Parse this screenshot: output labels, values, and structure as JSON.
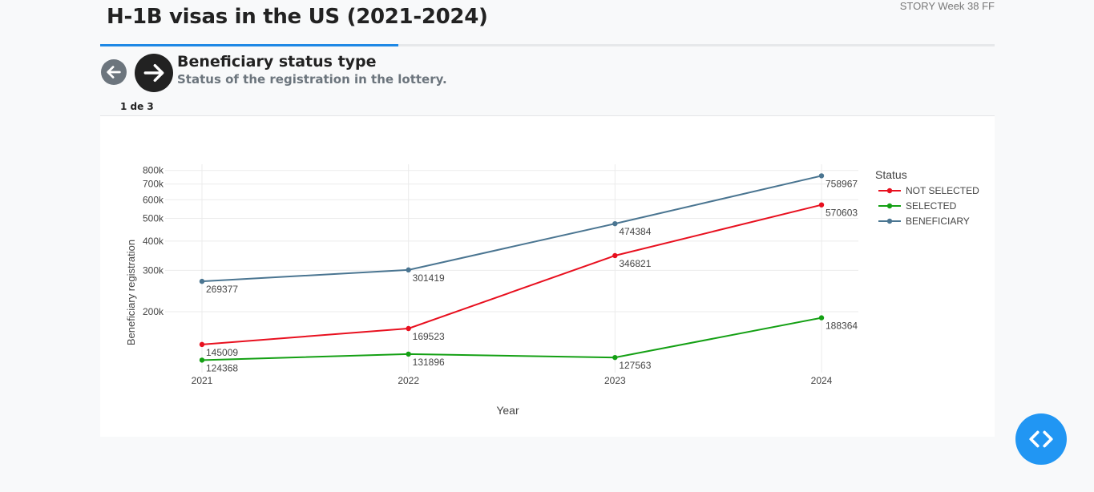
{
  "header": {
    "title": "H-1B visas in the US (2021-2024)",
    "story_tag": "STORY Week 38 FF"
  },
  "progress": {
    "fraction": 0.333
  },
  "step": {
    "title": "Beneficiary status type",
    "subtitle": "Status of the registration in the lottery.",
    "counter": "1 de 3"
  },
  "icons": {
    "back": "arrow-left-icon",
    "next": "arrow-right-icon",
    "fab": "code-icon"
  },
  "colors": {
    "accent": "#1e88e5",
    "fab": "#2196f3"
  },
  "chart_data": {
    "type": "line",
    "title": "",
    "xlabel": "Year",
    "ylabel": "Beneficiary registration",
    "yscale": "log",
    "ylim": [
      110000,
      850000
    ],
    "grid": true,
    "legend_title": "Status",
    "legend_position": "right",
    "x": [
      "2021",
      "2022",
      "2023",
      "2024"
    ],
    "yticks": [
      {
        "value": 200000,
        "label": "200k"
      },
      {
        "value": 300000,
        "label": "300k"
      },
      {
        "value": 400000,
        "label": "400k"
      },
      {
        "value": 500000,
        "label": "500k"
      },
      {
        "value": 600000,
        "label": "600k"
      },
      {
        "value": 700000,
        "label": "700k"
      },
      {
        "value": 800000,
        "label": "800k"
      }
    ],
    "series": [
      {
        "name": "NOT SELECTED",
        "color": "#e8101f",
        "values": [
          145009,
          169523,
          346821,
          570603
        ]
      },
      {
        "name": "SELECTED",
        "color": "#14a014",
        "values": [
          124368,
          131896,
          127563,
          188364
        ]
      },
      {
        "name": "BENEFICIARY",
        "color": "#4a7591",
        "values": [
          269377,
          301419,
          474384,
          758967
        ]
      }
    ]
  }
}
